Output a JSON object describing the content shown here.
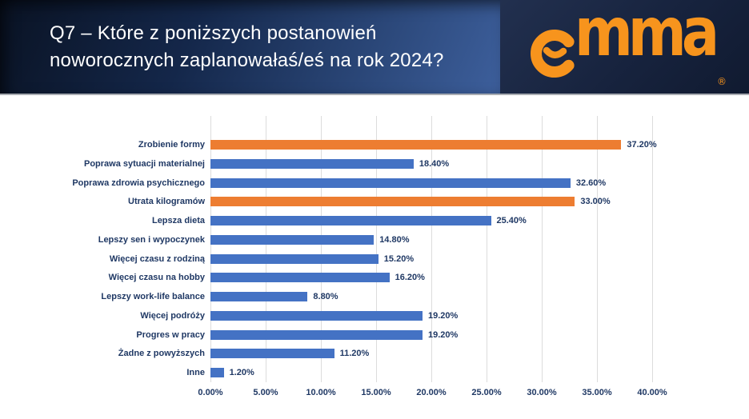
{
  "header": {
    "title_line1": "Q7 – Które z poniższych postanowień",
    "title_line2": "noworocznych zaplanowałaś/eś na rok 2024?",
    "logo": {
      "brand": "emma",
      "wordmark_tail": "mma",
      "registered": "®",
      "color": "#f7941d"
    }
  },
  "chart_data": {
    "type": "bar",
    "orientation": "horizontal",
    "title": "",
    "xlabel": "",
    "ylabel": "",
    "xlim": [
      0,
      40
    ],
    "grid": true,
    "categories": [
      "Zrobienie formy",
      "Poprawa sytuacji materialnej",
      "Poprawa zdrowia psychicznego",
      "Utrata kilogramów",
      "Lepsza dieta",
      "Lepszy sen i wypoczynek",
      "Więcej czasu z rodziną",
      "Więcej czasu na hobby",
      "Lepszy work-life balance",
      "Więcej podróży",
      "Progres w pracy",
      "Żadne z powyższych",
      "Inne"
    ],
    "values": [
      37.2,
      18.4,
      32.6,
      33.0,
      25.4,
      14.8,
      15.2,
      16.2,
      8.8,
      19.2,
      19.2,
      11.2,
      1.2
    ],
    "value_labels": [
      "37.20%",
      "18.40%",
      "32.60%",
      "33.00%",
      "25.40%",
      "14.80%",
      "15.20%",
      "16.20%",
      "8.80%",
      "19.20%",
      "19.20%",
      "11.20%",
      "1.20%"
    ],
    "x_ticks": [
      "0.00%",
      "5.00%",
      "10.00%",
      "15.00%",
      "20.00%",
      "25.00%",
      "30.00%",
      "35.00%",
      "40.00%"
    ],
    "colors": {
      "default": "#4472c4",
      "highlight": "#ed7d31",
      "label_text": "#1f3864",
      "gridline": "#dcdcdc"
    },
    "highlight_indices": [
      0,
      3
    ]
  }
}
